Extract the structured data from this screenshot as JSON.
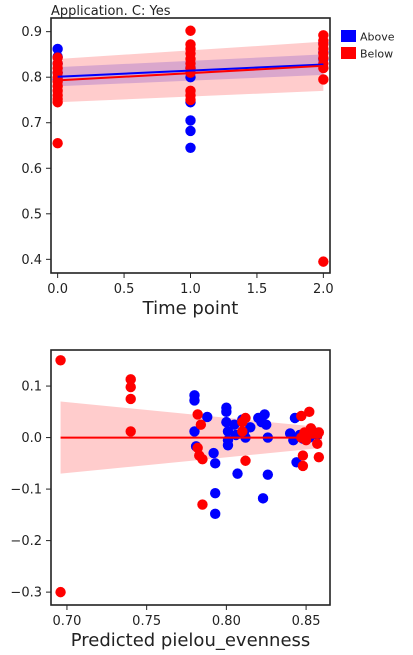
{
  "chart_data": [
    {
      "type": "scatter",
      "title": "Application. C: Yes",
      "xlabel": "Time point",
      "ylabel": "",
      "xlim": [
        -0.05,
        2.05
      ],
      "ylim": [
        0.37,
        0.93
      ],
      "xticks": [
        "0.0",
        "0.5",
        "1.0",
        "1.5",
        "2.0"
      ],
      "yticks": [
        "0.4",
        "0.5",
        "0.6",
        "0.7",
        "0.8",
        "0.9"
      ],
      "legend": {
        "placement": "outside-right",
        "entries": [
          "Above",
          "Below"
        ]
      },
      "series": [
        {
          "name": "Above",
          "color": "#0000ff",
          "points": [
            [
              0,
              0.862
            ],
            [
              0,
              0.845
            ],
            [
              0,
              0.83
            ],
            [
              0,
              0.81
            ],
            [
              0,
              0.795
            ],
            [
              1,
              0.745
            ],
            [
              1,
              0.705
            ],
            [
              1,
              0.682
            ],
            [
              1,
              0.645
            ],
            [
              1,
              0.8
            ],
            [
              1,
              0.82
            ],
            [
              2,
              0.875
            ],
            [
              2,
              0.855
            ],
            [
              2,
              0.84
            ]
          ],
          "fit": {
            "start": [
              0,
              0.801
            ],
            "end": [
              2,
              0.828
            ],
            "ci_start": [
              0.78,
              0.822
            ],
            "ci_end": [
              0.805,
              0.85
            ]
          }
        },
        {
          "name": "Below",
          "color": "#ff0000",
          "points": [
            [
              0,
              0.843
            ],
            [
              0,
              0.83
            ],
            [
              0,
              0.82
            ],
            [
              0,
              0.81
            ],
            [
              0,
              0.8
            ],
            [
              0,
              0.79
            ],
            [
              0,
              0.78
            ],
            [
              0,
              0.77
            ],
            [
              0,
              0.76
            ],
            [
              0,
              0.752
            ],
            [
              0,
              0.745
            ],
            [
              0,
              0.655
            ],
            [
              1,
              0.902
            ],
            [
              1,
              0.872
            ],
            [
              1,
              0.862
            ],
            [
              1,
              0.852
            ],
            [
              1,
              0.84
            ],
            [
              1,
              0.83
            ],
            [
              1,
              0.82
            ],
            [
              1,
              0.81
            ],
            [
              1,
              0.77
            ],
            [
              1,
              0.76
            ],
            [
              1,
              0.75
            ],
            [
              2,
              0.892
            ],
            [
              2,
              0.88
            ],
            [
              2,
              0.872
            ],
            [
              2,
              0.862
            ],
            [
              2,
              0.852
            ],
            [
              2,
              0.842
            ],
            [
              2,
              0.83
            ],
            [
              2,
              0.82
            ],
            [
              2,
              0.795
            ],
            [
              2,
              0.395
            ]
          ],
          "fit": {
            "start": [
              0,
              0.793
            ],
            "end": [
              2,
              0.825
            ],
            "ci_start": [
              0.745,
              0.84
            ],
            "ci_end": [
              0.77,
              0.878
            ]
          }
        }
      ]
    },
    {
      "type": "scatter",
      "title": "",
      "xlabel": "Predicted pielou_evenness",
      "ylabel": "",
      "xlim": [
        0.69,
        0.865
      ],
      "ylim": [
        -0.325,
        0.17
      ],
      "xticks": [
        "0.70",
        "0.75",
        "0.80",
        "0.85"
      ],
      "yticks": [
        "0.1",
        "0.0",
        "−0.1",
        "−0.2",
        "−0.3"
      ],
      "series": [
        {
          "name": "Above",
          "color": "#0000ff",
          "points": [
            [
              0.78,
              0.082
            ],
            [
              0.78,
              0.072
            ],
            [
              0.78,
              0.012
            ],
            [
              0.781,
              -0.017
            ],
            [
              0.788,
              0.04
            ],
            [
              0.792,
              -0.03
            ],
            [
              0.793,
              -0.05
            ],
            [
              0.793,
              -0.108
            ],
            [
              0.793,
              -0.148
            ],
            [
              0.8,
              0.058
            ],
            [
              0.8,
              0.05
            ],
            [
              0.8,
              0.03
            ],
            [
              0.801,
              0.012
            ],
            [
              0.801,
              -0.005
            ],
            [
              0.801,
              -0.015
            ],
            [
              0.805,
              0.025
            ],
            [
              0.806,
              0.005
            ],
            [
              0.807,
              -0.07
            ],
            [
              0.81,
              0.035
            ],
            [
              0.811,
              0.01
            ],
            [
              0.812,
              0.0
            ],
            [
              0.815,
              0.02
            ],
            [
              0.82,
              0.038
            ],
            [
              0.822,
              0.03
            ],
            [
              0.823,
              -0.118
            ],
            [
              0.824,
              0.045
            ],
            [
              0.825,
              0.025
            ],
            [
              0.826,
              0.0
            ],
            [
              0.826,
              -0.072
            ],
            [
              0.84,
              0.008
            ],
            [
              0.842,
              -0.005
            ],
            [
              0.843,
              0.038
            ],
            [
              0.844,
              -0.048
            ],
            [
              0.846,
              0.005
            ],
            [
              0.848,
              -0.002
            ],
            [
              0.852,
              0.0
            ],
            [
              0.855,
              0.01
            ],
            [
              0.857,
              0.005
            ]
          ]
        },
        {
          "name": "Below",
          "color": "#ff0000",
          "points": [
            [
              0.696,
              0.15
            ],
            [
              0.696,
              -0.3
            ],
            [
              0.74,
              0.113
            ],
            [
              0.74,
              0.098
            ],
            [
              0.74,
              0.075
            ],
            [
              0.74,
              0.012
            ],
            [
              0.782,
              0.045
            ],
            [
              0.782,
              -0.02
            ],
            [
              0.783,
              -0.035
            ],
            [
              0.784,
              0.025
            ],
            [
              0.785,
              -0.042
            ],
            [
              0.785,
              -0.13
            ],
            [
              0.81,
              0.012
            ],
            [
              0.81,
              0.03
            ],
            [
              0.812,
              0.038
            ],
            [
              0.812,
              -0.045
            ],
            [
              0.847,
              0.042
            ],
            [
              0.847,
              0.0
            ],
            [
              0.848,
              -0.035
            ],
            [
              0.848,
              -0.055
            ],
            [
              0.849,
              0.01
            ],
            [
              0.85,
              -0.005
            ],
            [
              0.852,
              0.05
            ],
            [
              0.853,
              0.018
            ],
            [
              0.854,
              0.008
            ],
            [
              0.857,
              -0.012
            ],
            [
              0.858,
              -0.038
            ],
            [
              0.858,
              0.01
            ]
          ],
          "fit": {
            "start": [
              0.696,
              0.0
            ],
            "end": [
              0.86,
              0.0
            ],
            "ci_start": [
              -0.07,
              0.07
            ],
            "ci_end": [
              -0.02,
              0.02
            ]
          }
        }
      ]
    }
  ]
}
